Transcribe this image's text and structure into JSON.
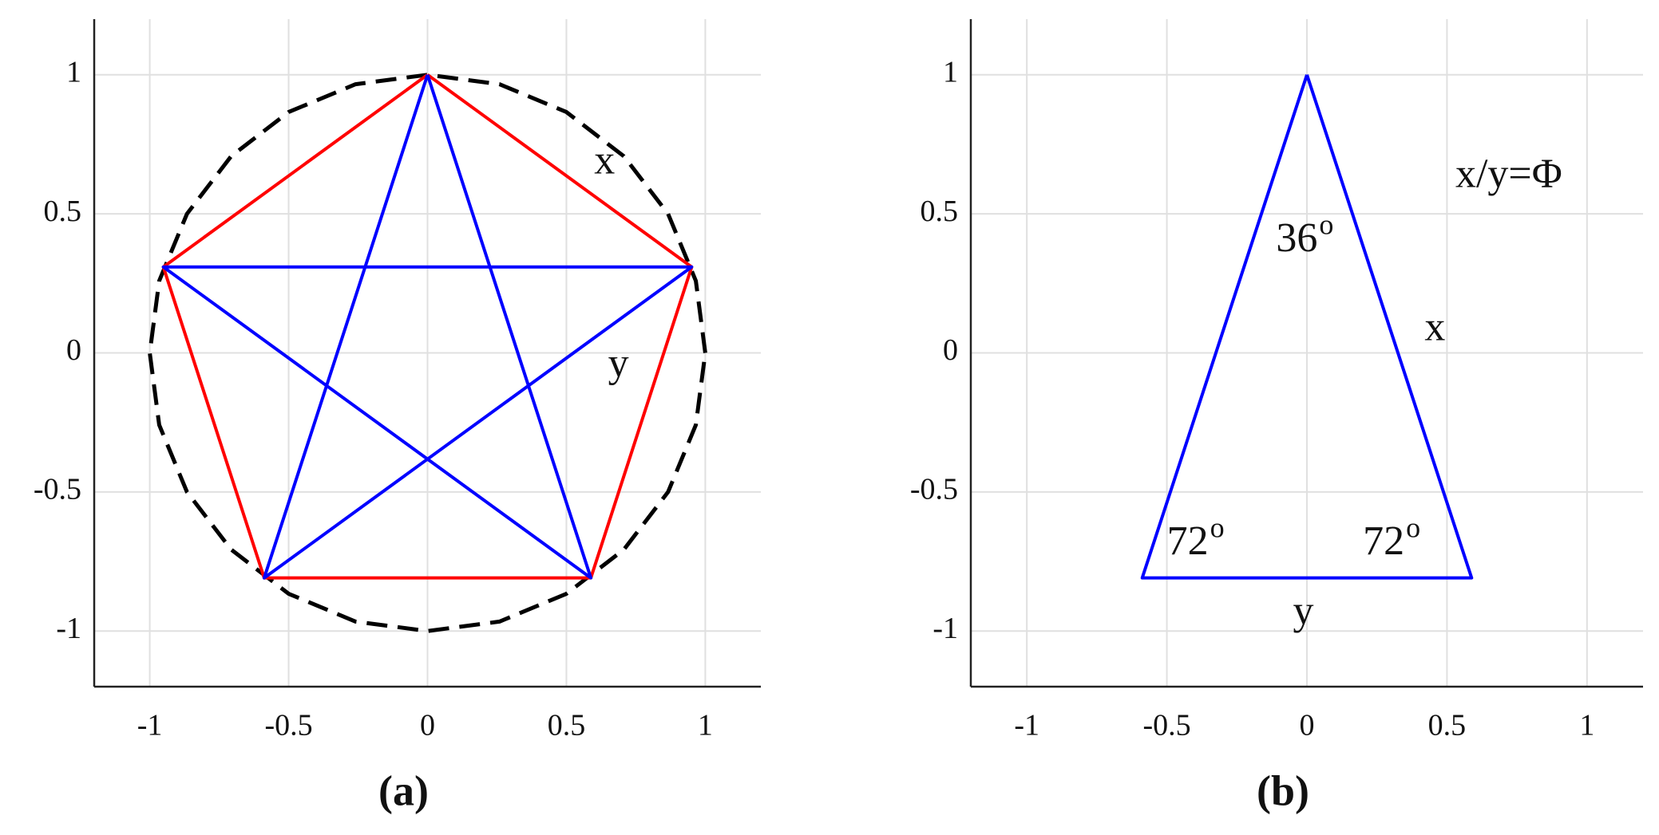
{
  "chart_data": [
    {
      "type": "line",
      "label": "(a)",
      "xlim": [
        -1.2,
        1.2
      ],
      "ylim": [
        -1.2,
        1.2
      ],
      "xticks": [
        -1,
        -0.5,
        0,
        0.5,
        1
      ],
      "yticks": [
        -1,
        -0.5,
        0,
        0.5,
        1
      ],
      "grid": true,
      "series": [
        {
          "name": "circle",
          "color": "#000000",
          "dash": true,
          "x": [
            1,
            0.966,
            0.866,
            0.707,
            0.5,
            0.259,
            0,
            -0.259,
            -0.5,
            -0.707,
            -0.866,
            -0.966,
            -1,
            -0.966,
            -0.866,
            -0.707,
            -0.5,
            -0.259,
            0,
            0.259,
            0.5,
            0.707,
            0.866,
            0.966,
            1
          ],
          "values": [
            0,
            0.259,
            0.5,
            0.707,
            0.866,
            0.966,
            1,
            0.966,
            0.866,
            0.707,
            0.5,
            0.259,
            0,
            -0.259,
            -0.5,
            -0.707,
            -0.866,
            -0.966,
            -1,
            -0.966,
            -0.866,
            -0.707,
            -0.5,
            -0.259,
            0
          ]
        },
        {
          "name": "pentagon",
          "color": "#ff0000",
          "x": [
            0,
            0.951,
            0.588,
            -0.588,
            -0.951,
            0
          ],
          "values": [
            1,
            0.309,
            -0.809,
            -0.809,
            0.309,
            1
          ]
        },
        {
          "name": "star",
          "color": "#0000ff",
          "x": [
            0,
            0.588,
            -0.951,
            0.951,
            -0.588,
            0
          ],
          "values": [
            1,
            -0.809,
            0.309,
            0.309,
            -0.809,
            1
          ]
        }
      ],
      "annotations": [
        {
          "text": "x",
          "x": 0.6,
          "y": 0.68
        },
        {
          "text": "y",
          "x": 0.65,
          "y": -0.05
        }
      ]
    },
    {
      "type": "line",
      "label": "(b)",
      "xlim": [
        -1.2,
        1.2
      ],
      "ylim": [
        -1.2,
        1.2
      ],
      "xticks": [
        -1,
        -0.5,
        0,
        0.5,
        1
      ],
      "yticks": [
        -1,
        -0.5,
        0,
        0.5,
        1
      ],
      "grid": true,
      "series": [
        {
          "name": "triangle",
          "color": "#0000ff",
          "x": [
            0,
            0.588,
            -0.588,
            0
          ],
          "values": [
            1,
            -0.809,
            -0.809,
            1
          ]
        }
      ],
      "annotations": [
        {
          "text": "x/y=Φ",
          "x": 0.53,
          "y": 0.63
        },
        {
          "text": "36",
          "sup": "o",
          "x": -0.11,
          "y": 0.4
        },
        {
          "text": "x",
          "x": 0.42,
          "y": 0.08
        },
        {
          "text": "72",
          "sup": "o",
          "x": -0.5,
          "y": -0.69
        },
        {
          "text": "72",
          "sup": "o",
          "x": 0.2,
          "y": -0.69
        },
        {
          "text": "y",
          "x": -0.05,
          "y": -0.94
        }
      ]
    }
  ]
}
